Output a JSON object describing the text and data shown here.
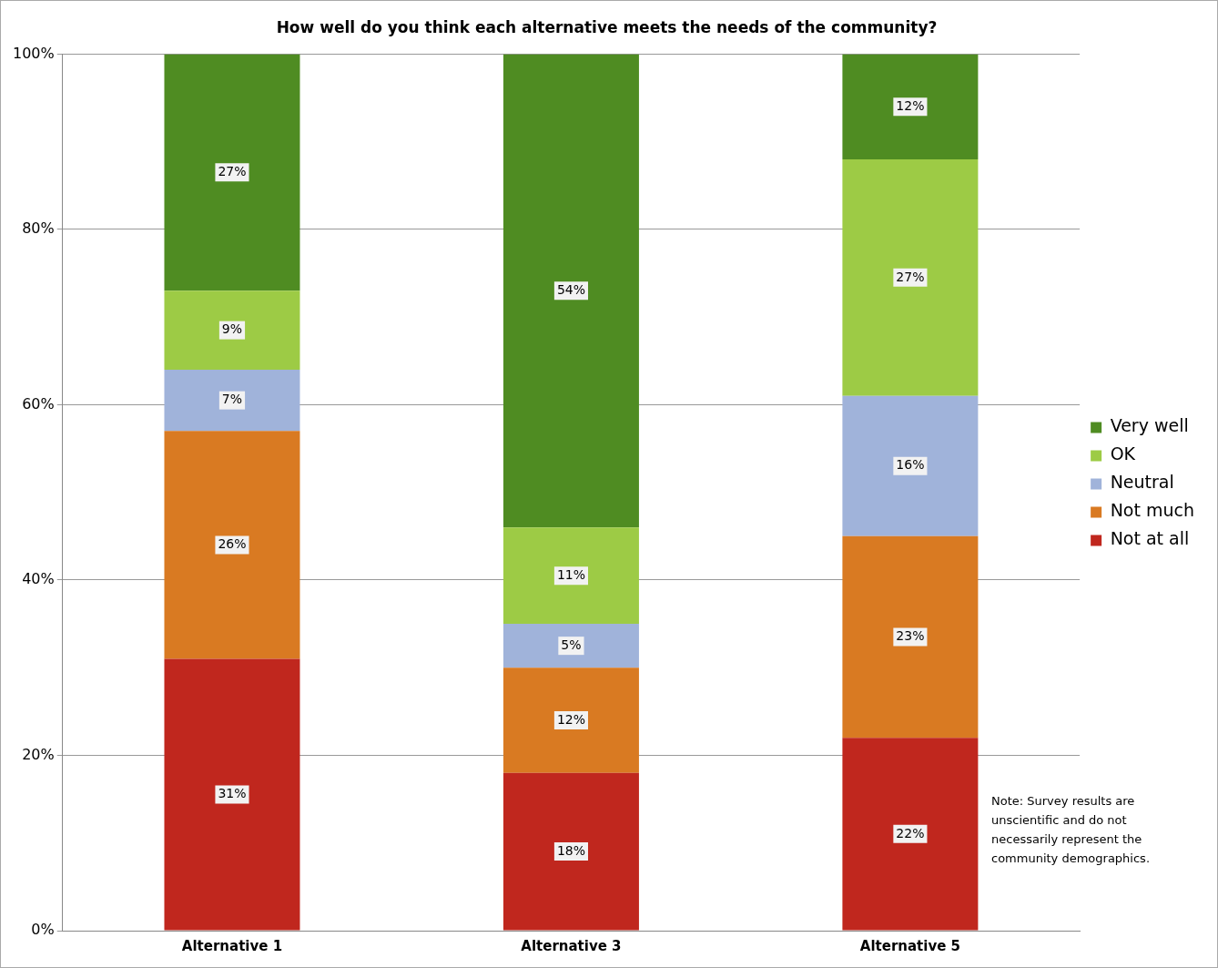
{
  "chart_data": {
    "type": "bar",
    "title": "How well do you think each alternative meets the needs of the community?",
    "categories": [
      "Alternative 1",
      "Alternative 3",
      "Alternative 5"
    ],
    "stacked": true,
    "series": [
      {
        "name": "Not at all",
        "color": "#c0271e",
        "values": [
          31,
          18,
          22
        ],
        "value_labels": [
          "31%",
          "18%",
          "22%"
        ]
      },
      {
        "name": "Not much",
        "color": "#d97a22",
        "values": [
          26,
          12,
          23
        ],
        "value_labels": [
          "26%",
          "12%",
          "23%"
        ]
      },
      {
        "name": "Neutral",
        "color": "#a0b3da",
        "values": [
          7,
          5,
          16
        ],
        "value_labels": [
          "7%",
          "5%",
          "16%"
        ]
      },
      {
        "name": "OK",
        "color": "#9dcb45",
        "values": [
          9,
          11,
          27
        ],
        "value_labels": [
          "9%",
          "11%",
          "27%"
        ]
      },
      {
        "name": "Very well",
        "color": "#4f8c22",
        "values": [
          27,
          54,
          12
        ],
        "value_labels": [
          "27%",
          "54%",
          "12%"
        ]
      }
    ],
    "ylim": [
      0,
      100
    ],
    "yticks": [
      {
        "value": 0,
        "label": "0%"
      },
      {
        "value": 20,
        "label": "20%"
      },
      {
        "value": 40,
        "label": "40%"
      },
      {
        "value": 60,
        "label": "60%"
      },
      {
        "value": 80,
        "label": "80%"
      },
      {
        "value": 100,
        "label": "100%"
      }
    ],
    "grid": "y",
    "legend": "right",
    "annotations": [
      "Note:  Survey results are unscientific and do not necessarily represent the community demographics."
    ]
  }
}
